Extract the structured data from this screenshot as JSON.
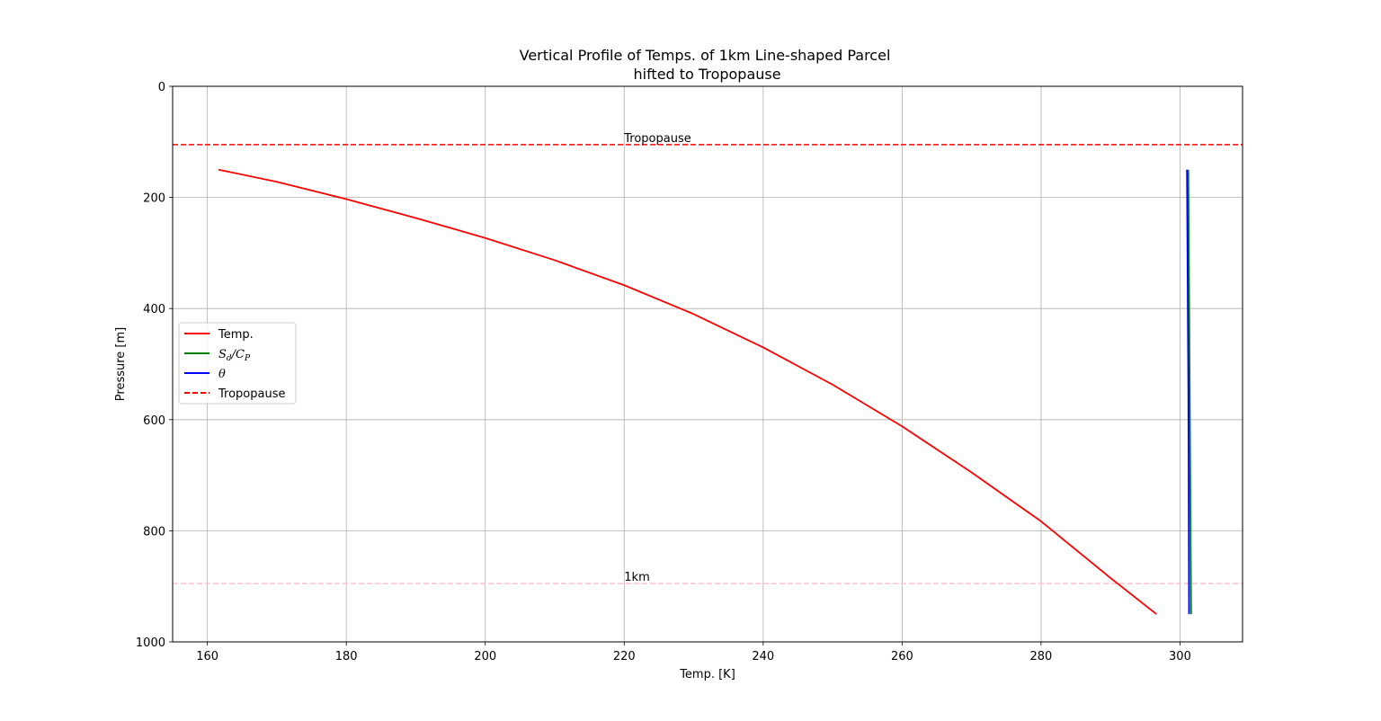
{
  "chart_data": {
    "type": "line",
    "title_line1": "Vertical Profile of Temps. of 1km Line-shaped Parcel",
    "title_line2": " hifted to Tropopause",
    "xlabel": "Temp. [K]",
    "ylabel": "Pressure [m]",
    "xlim": [
      155,
      309
    ],
    "ylim": [
      1000,
      0
    ],
    "y_inverted": true,
    "grid": true,
    "xticks": [
      160,
      180,
      200,
      220,
      240,
      260,
      280,
      300
    ],
    "yticks": [
      0,
      200,
      400,
      600,
      800,
      1000
    ],
    "legend_position": "center-left",
    "series": [
      {
        "key": "temp",
        "name": "Temp.",
        "color": "#ff0000",
        "style": "solid",
        "x": [
          161.6,
          170,
          180,
          190,
          200,
          210,
          220,
          230,
          240,
          250,
          260,
          270,
          280,
          290,
          296.6
        ],
        "y": [
          150,
          172,
          203,
          237,
          273,
          313,
          358,
          410,
          470,
          537,
          612,
          695,
          783,
          885,
          950
        ]
      },
      {
        "key": "sdcp",
        "name": "S_d/C_P",
        "color": "#008000",
        "style": "solid",
        "x": [
          301.2,
          301.4,
          301.6
        ],
        "y": [
          150,
          550,
          950
        ]
      },
      {
        "key": "theta",
        "name": "θ",
        "color": "#0000ff",
        "style": "solid",
        "x": [
          301.0,
          301.2,
          301.3
        ],
        "y": [
          150,
          550,
          950
        ]
      }
    ],
    "hlines": [
      {
        "key": "tropopause",
        "name": "Tropopause",
        "y": 105,
        "color": "#ff0000",
        "style": "dashed",
        "in_legend": true
      },
      {
        "key": "onekm",
        "name": "1km",
        "y": 895,
        "color": "#ffc0cb",
        "style": "dashed",
        "in_legend": false
      }
    ],
    "annotations": [
      {
        "text": "Tropopause",
        "x": 220,
        "y": 105
      },
      {
        "text": "1km",
        "x": 220,
        "y": 895
      }
    ],
    "legend": [
      {
        "label": "Temp.",
        "color": "#ff0000",
        "style": "solid"
      },
      {
        "label_main": "S",
        "label_sub1": "d",
        "label_mid": "/C",
        "label_sub2": "P",
        "color": "#008000",
        "style": "solid"
      },
      {
        "label": "θ",
        "color": "#0000ff",
        "style": "solid"
      },
      {
        "label": "Tropopause",
        "color": "#ff0000",
        "style": "dashed"
      }
    ]
  }
}
